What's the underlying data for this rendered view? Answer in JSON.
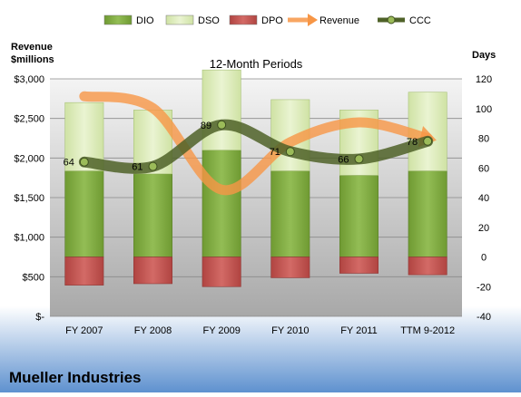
{
  "chart_data": {
    "type": "bar",
    "title": "12-Month Periods",
    "company": "Mueller Industries",
    "categories": [
      "FY 2007",
      "FY 2008",
      "FY 2009",
      "FY 2010",
      "FY 2011",
      "TTM 9-2012"
    ],
    "left_axis": {
      "label_line1": "Revenue",
      "label_line2": "$millions",
      "ylim": [
        0,
        3000
      ],
      "ticks": [
        0,
        500,
        1000,
        1500,
        2000,
        2500,
        3000
      ],
      "tick_labels": [
        "$-",
        "$500",
        "$1,000",
        "$1,500",
        "$2,000",
        "$2,500",
        "$3,000"
      ]
    },
    "right_axis": {
      "label": "Days",
      "ylim": [
        -40,
        120
      ],
      "ticks": [
        -40,
        -20,
        0,
        20,
        40,
        60,
        80,
        100,
        120
      ],
      "tick_labels": [
        "-40",
        "-20",
        "0",
        "20",
        "40",
        "60",
        "80",
        "100",
        "120"
      ]
    },
    "grid": true,
    "legend_position": "top",
    "series": [
      {
        "name": "DIO",
        "kind": "stacked-bar",
        "axis": "right",
        "color": "#7aa33a",
        "values": [
          58,
          56,
          72,
          58,
          55,
          58
        ]
      },
      {
        "name": "DSO",
        "kind": "stacked-bar",
        "axis": "right",
        "color": "#d9eab2",
        "values": [
          46,
          43,
          54,
          48,
          44,
          53
        ]
      },
      {
        "name": "DPO",
        "kind": "negative-bar",
        "axis": "right",
        "color": "#c0504d",
        "values": [
          -19,
          -18,
          -20,
          -14,
          -11,
          -12
        ]
      },
      {
        "name": "Revenue",
        "kind": "line",
        "axis": "left",
        "color": "#f79646",
        "values": [
          2780,
          2630,
          1600,
          2200,
          2450,
          2250
        ]
      },
      {
        "name": "CCC",
        "kind": "line",
        "axis": "right",
        "color": "#4f6228",
        "values": [
          64,
          61,
          89,
          71,
          66,
          78
        ],
        "labels": [
          "64",
          "61",
          "89",
          "71",
          "66",
          "78"
        ]
      }
    ]
  }
}
